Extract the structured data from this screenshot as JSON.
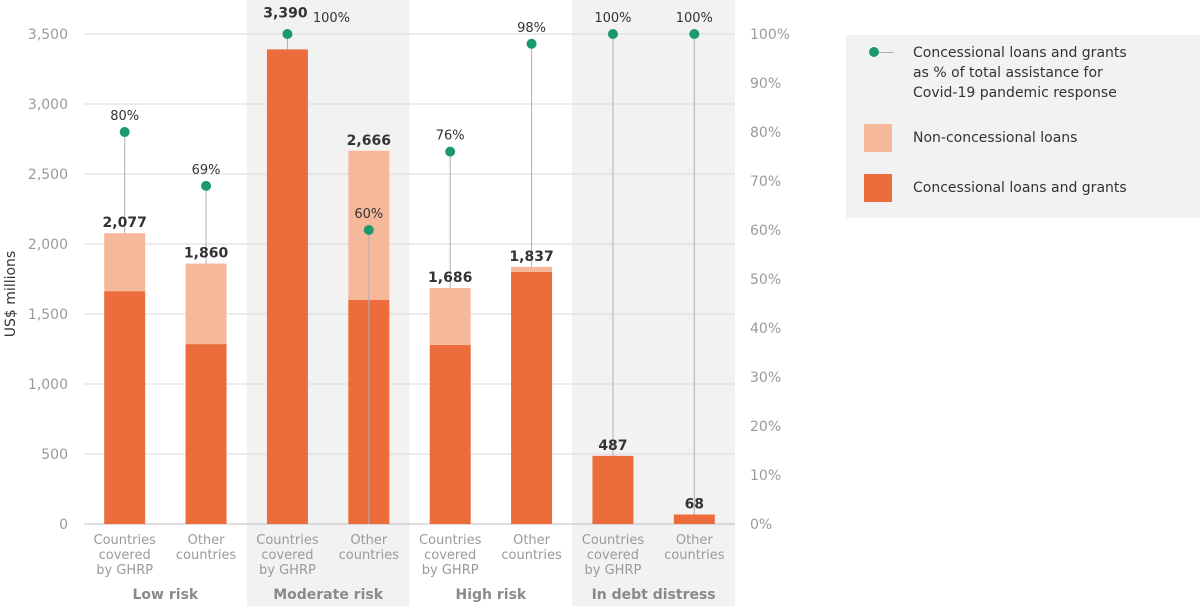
{
  "colors": {
    "concessional": "#ec6c3c",
    "non_concessional": "#f6b89a",
    "dot": "#1a9a6a",
    "group_bg": "#f2f2f2",
    "grid": "#d9d9d9"
  },
  "chart_data": {
    "type": "bar",
    "stacked": true,
    "ylabel": "US$ millions",
    "ylim": [
      0,
      3500
    ],
    "yticks": [
      "0",
      "500",
      "1,000",
      "1,500",
      "2,000",
      "2,500",
      "3,000",
      "3,500"
    ],
    "y2lim": [
      0,
      100
    ],
    "y2ticks": [
      "0%",
      "10%",
      "20%",
      "30%",
      "40%",
      "50%",
      "60%",
      "70%",
      "80%",
      "90%",
      "100%"
    ],
    "groups": [
      "Low risk",
      "Moderate risk",
      "High risk",
      "In debt distress"
    ],
    "categories": [
      [
        "Countries",
        "covered",
        "by GHRP"
      ],
      [
        "Other",
        "countries"
      ],
      [
        "Countries",
        "covered",
        "by GHRP"
      ],
      [
        "Other",
        "countries"
      ],
      [
        "Countries",
        "covered",
        "by GHRP"
      ],
      [
        "Other",
        "countries"
      ],
      [
        "Countries",
        "covered",
        "by GHRP"
      ],
      [
        "Other",
        "countries"
      ]
    ],
    "series": [
      {
        "name": "Concessional loans and grants",
        "values": [
          1663,
          1285,
          3390,
          1600,
          1280,
          1800,
          487,
          68
        ]
      },
      {
        "name": "Non-concessional loans",
        "values": [
          414,
          575,
          0,
          1066,
          406,
          37,
          0,
          0
        ]
      }
    ],
    "totals": [
      2077,
      1860,
      3390,
      2666,
      1686,
      1837,
      487,
      68
    ],
    "total_labels": [
      "2,077",
      "1,860",
      "3,390",
      "2,666",
      "1,686",
      "1,837",
      "487",
      "68"
    ],
    "percent_series": {
      "name": "Concessional loans and grants as % of total assistance for Covid-19 pandemic response",
      "values": [
        80,
        69,
        100,
        60,
        76,
        98,
        100,
        100
      ],
      "labels": [
        "80%",
        "69%",
        "100%",
        "60%",
        "76%",
        "98%",
        "100%",
        "100%"
      ]
    },
    "grid": true
  },
  "legend": {
    "items": [
      {
        "lines": [
          "Concessional loans and grants",
          "as % of total assistance for",
          "Covid-19 pandemic response"
        ]
      },
      {
        "lines": [
          "Non-concessional loans"
        ]
      },
      {
        "lines": [
          "Concessional loans and grants"
        ]
      }
    ]
  }
}
